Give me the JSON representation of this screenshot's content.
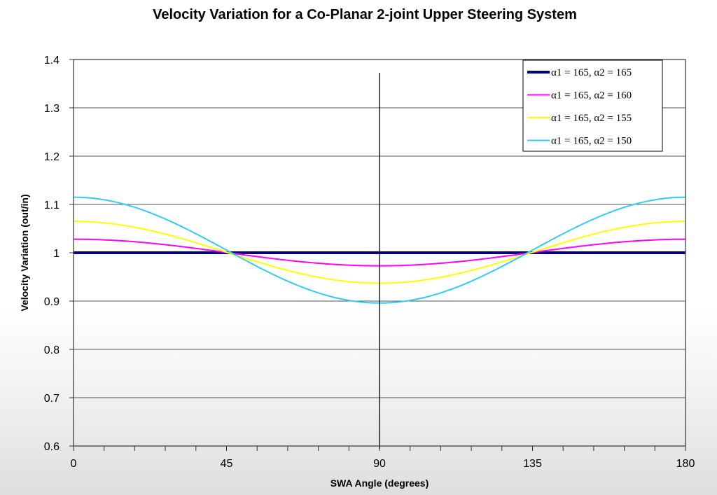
{
  "chart_data": {
    "type": "line",
    "title": "Velocity Variation for a Co-Planar 2-joint Upper Steering System",
    "xlabel": "SWA Angle (degrees)",
    "ylabel": "Velocity Variation (out/in)",
    "xlim": [
      0,
      180
    ],
    "ylim": [
      0.6,
      1.4
    ],
    "xticks": [
      0,
      45,
      90,
      135,
      180
    ],
    "xtick_labels": [
      "0",
      "45",
      "90",
      "135",
      "180"
    ],
    "yticks": [
      0.6,
      0.7,
      0.8,
      0.9,
      1.0,
      1.1,
      1.2,
      1.3,
      1.4
    ],
    "ytick_labels": [
      "0.6",
      "0.7",
      "0.8",
      "0.9",
      "1",
      "1.1",
      "1.2",
      "1.3",
      "1.4"
    ],
    "grid": "horizontal",
    "legend_position": "top-right",
    "annotations": [
      {
        "type": "vertical-line",
        "x": 90
      }
    ],
    "series": [
      {
        "name": "α1 = 165, α2 = 165",
        "color": "#000080",
        "width": 4,
        "x": [
          0,
          45,
          90,
          135,
          180
        ],
        "values": [
          1.0,
          1.0,
          1.0,
          1.0,
          1.0
        ]
      },
      {
        "name": "α1 = 165, α2 = 160",
        "color": "#ff00ff",
        "width": 2,
        "x": [
          0,
          45,
          90,
          135,
          180
        ],
        "values": [
          1.028,
          1.0,
          0.973,
          1.0,
          1.028
        ]
      },
      {
        "name": "α1 = 165, α2 = 155",
        "color": "#ffff00",
        "width": 2,
        "x": [
          0,
          45,
          90,
          135,
          180
        ],
        "values": [
          1.065,
          1.0,
          0.937,
          1.0,
          1.065
        ]
      },
      {
        "name": "α1 = 165, α2 = 150",
        "color": "#33ccee",
        "width": 2,
        "x": [
          0,
          45,
          90,
          135,
          180
        ],
        "values": [
          1.115,
          1.0,
          0.896,
          1.0,
          1.115
        ]
      }
    ]
  }
}
